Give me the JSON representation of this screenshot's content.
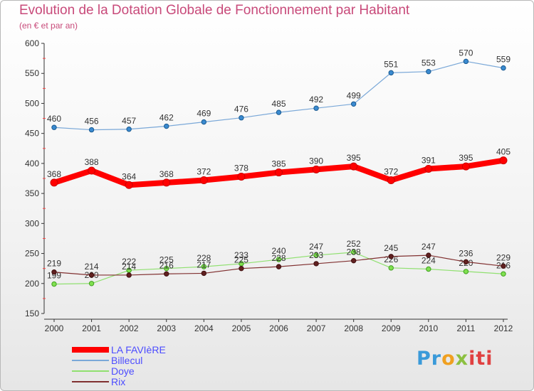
{
  "chart_data": {
    "type": "line",
    "title": "Evolution de la Dotation Globale de Fonctionnement par Habitant",
    "subtitle": "(en € et par an)",
    "x": [
      2000,
      2001,
      2002,
      2003,
      2004,
      2005,
      2006,
      2007,
      2008,
      2009,
      2010,
      2011,
      2012
    ],
    "ylim": [
      150,
      600
    ],
    "yticks": [
      150,
      200,
      250,
      300,
      350,
      400,
      450,
      500,
      550,
      600
    ],
    "grid": false,
    "legend_position": "bottom-left",
    "series": [
      {
        "name": "LA FAVIèRE",
        "color": "#ff0000",
        "values": [
          368,
          388,
          364,
          368,
          372,
          378,
          385,
          390,
          395,
          372,
          391,
          395,
          405
        ]
      },
      {
        "name": "Billecul",
        "color": "#7aa8d8",
        "values": [
          460,
          456,
          457,
          462,
          469,
          476,
          485,
          492,
          499,
          551,
          553,
          570,
          559
        ]
      },
      {
        "name": "Doye",
        "color": "#90e070",
        "values": [
          199,
          200,
          222,
          225,
          228,
          233,
          240,
          247,
          252,
          226,
          224,
          220,
          216
        ]
      },
      {
        "name": "Rix",
        "color": "#803030",
        "values": [
          219,
          214,
          214,
          216,
          217,
          225,
          228,
          233,
          238,
          245,
          247,
          236,
          229
        ]
      }
    ]
  },
  "logo_text": [
    "Pr",
    "o",
    "x",
    "iti"
  ]
}
